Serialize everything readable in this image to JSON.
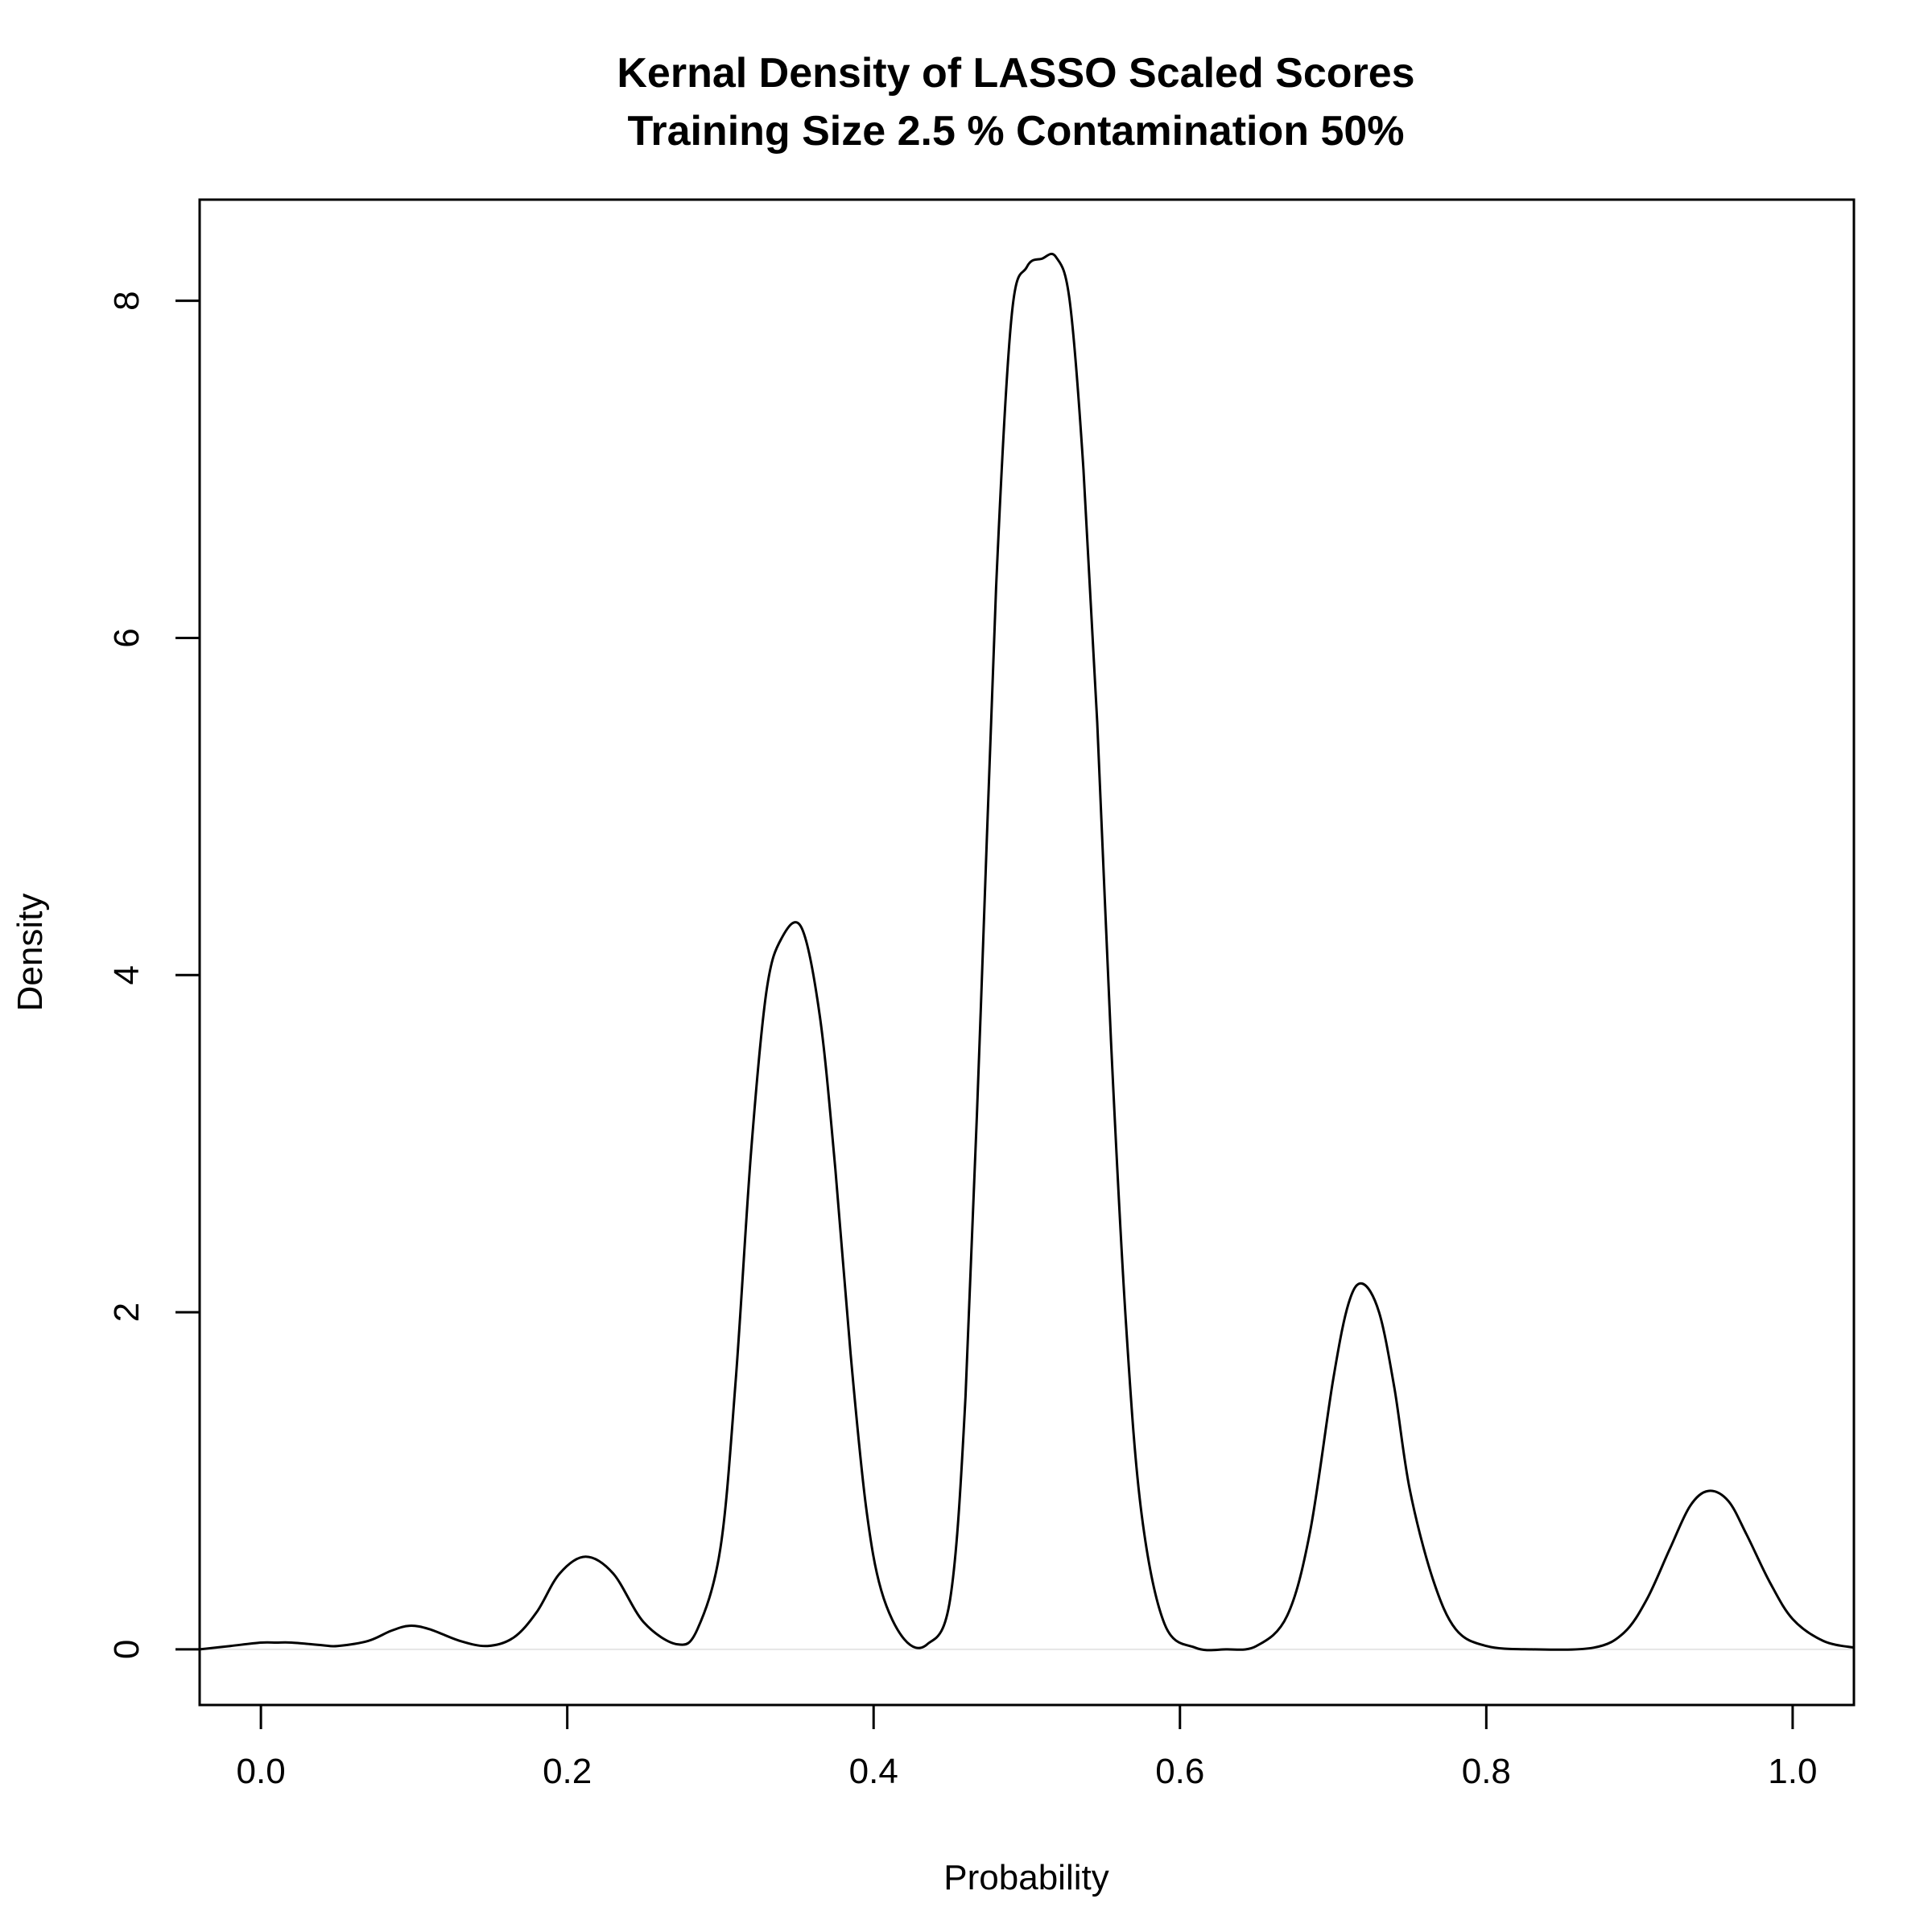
{
  "chart_data": {
    "type": "line",
    "title": "Kernal Density of LASSO Scaled Scores",
    "subtitle": "Training Size 2.5 % Contamination 50%",
    "xlabel": "Probability",
    "ylabel": "Density",
    "xlim": [
      -0.04,
      1.04
    ],
    "ylim": [
      -0.33,
      8.6
    ],
    "x_ticks": [
      {
        "value": 0.0,
        "label": "0.0"
      },
      {
        "value": 0.2,
        "label": "0.2"
      },
      {
        "value": 0.4,
        "label": "0.4"
      },
      {
        "value": 0.6,
        "label": "0.6"
      },
      {
        "value": 0.8,
        "label": "0.8"
      },
      {
        "value": 1.0,
        "label": "1.0"
      }
    ],
    "y_ticks": [
      {
        "value": 0,
        "label": "0"
      },
      {
        "value": 2,
        "label": "2"
      },
      {
        "value": 4,
        "label": "4"
      },
      {
        "value": 6,
        "label": "6"
      },
      {
        "value": 8,
        "label": "8"
      }
    ],
    "grid": false,
    "legend": "none",
    "line_color": "#000000",
    "baseline_color": "#e6e6e6",
    "series": [
      {
        "x": [
          -0.04,
          -0.02,
          0.0,
          0.01,
          0.02,
          0.04,
          0.05,
          0.07,
          0.085,
          0.097,
          0.11,
          0.13,
          0.148,
          0.165,
          0.18,
          0.195,
          0.212,
          0.23,
          0.25,
          0.272,
          0.285,
          0.3,
          0.31,
          0.32,
          0.33,
          0.34,
          0.353,
          0.365,
          0.375,
          0.385,
          0.395,
          0.405,
          0.42,
          0.435,
          0.45,
          0.46,
          0.47,
          0.48,
          0.49,
          0.5,
          0.51,
          0.519,
          0.528,
          0.537,
          0.546,
          0.555,
          0.565,
          0.575,
          0.59,
          0.61,
          0.63,
          0.65,
          0.67,
          0.685,
          0.7,
          0.71,
          0.719,
          0.73,
          0.74,
          0.75,
          0.765,
          0.78,
          0.8,
          0.83,
          0.87,
          0.89,
          0.905,
          0.92,
          0.933,
          0.945,
          0.958,
          0.97,
          0.985,
          1.0,
          1.02,
          1.04
        ],
        "y": [
          0.0,
          0.02,
          0.04,
          0.04,
          0.04,
          0.025,
          0.02,
          0.05,
          0.11,
          0.14,
          0.12,
          0.05,
          0.02,
          0.07,
          0.22,
          0.45,
          0.55,
          0.45,
          0.16,
          0.03,
          0.12,
          0.6,
          1.6,
          2.95,
          3.9,
          4.22,
          4.28,
          3.75,
          2.85,
          1.75,
          0.85,
          0.35,
          0.06,
          0.03,
          0.3,
          1.5,
          3.8,
          6.3,
          7.9,
          8.2,
          8.25,
          8.26,
          8.0,
          7.0,
          5.5,
          3.6,
          1.9,
          0.8,
          0.15,
          0.01,
          0.0,
          0.02,
          0.2,
          0.7,
          1.6,
          2.05,
          2.17,
          2.0,
          1.55,
          0.95,
          0.42,
          0.12,
          0.02,
          0.0,
          0.01,
          0.1,
          0.3,
          0.6,
          0.85,
          0.94,
          0.88,
          0.68,
          0.4,
          0.18,
          0.05,
          0.01
        ]
      }
    ]
  }
}
